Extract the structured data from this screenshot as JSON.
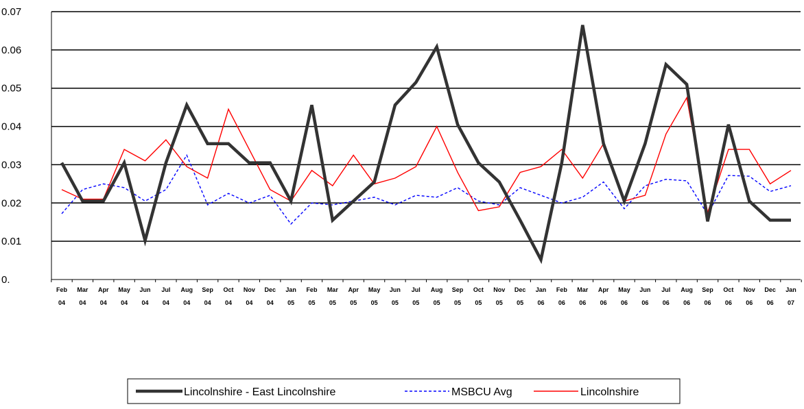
{
  "chart_data": {
    "type": "line",
    "ylim": [
      0,
      0.07
    ],
    "yticks": [
      "0.07",
      "0.06",
      "0.05",
      "0.04",
      "0.03",
      "0.02",
      "0.01",
      "0."
    ],
    "ytick_values": [
      0.07,
      0.06,
      0.05,
      0.04,
      0.03,
      0.02,
      0.01,
      0
    ],
    "grid": true,
    "legend_position": "bottom",
    "categories": [
      [
        "Feb",
        "04"
      ],
      [
        "Mar",
        "04"
      ],
      [
        "Apr",
        "04"
      ],
      [
        "May",
        "04"
      ],
      [
        "Jun",
        "04"
      ],
      [
        "Jul",
        "04"
      ],
      [
        "Aug",
        "04"
      ],
      [
        "Sep",
        "04"
      ],
      [
        "Oct",
        "04"
      ],
      [
        "Nov",
        "04"
      ],
      [
        "Dec",
        "04"
      ],
      [
        "Jan",
        "05"
      ],
      [
        "Feb",
        "05"
      ],
      [
        "Mar",
        "05"
      ],
      [
        "Apr",
        "05"
      ],
      [
        "May",
        "05"
      ],
      [
        "Jun",
        "05"
      ],
      [
        "Jul",
        "05"
      ],
      [
        "Aug",
        "05"
      ],
      [
        "Sep",
        "05"
      ],
      [
        "Oct",
        "05"
      ],
      [
        "Nov",
        "05"
      ],
      [
        "Dec",
        "05"
      ],
      [
        "Jan",
        "06"
      ],
      [
        "Feb",
        "06"
      ],
      [
        "Mar",
        "06"
      ],
      [
        "Apr",
        "06"
      ],
      [
        "May",
        "06"
      ],
      [
        "Jun",
        "06"
      ],
      [
        "Jul",
        "06"
      ],
      [
        "Aug",
        "06"
      ],
      [
        "Sep",
        "06"
      ],
      [
        "Oct",
        "06"
      ],
      [
        "Nov",
        "06"
      ],
      [
        "Dec",
        "06"
      ],
      [
        "Jan",
        "07"
      ]
    ],
    "series": [
      {
        "name": "Lincolnshire - East Lincolnshire",
        "color": "#333333",
        "style": "solid-thick",
        "values": [
          0.0305,
          0.0205,
          0.0205,
          0.0305,
          0.0102,
          0.0305,
          0.0456,
          0.0355,
          0.0355,
          0.0305,
          0.0305,
          0.0205,
          0.0456,
          0.0155,
          0.0205,
          0.0255,
          0.0456,
          0.0515,
          0.0608,
          0.0405,
          0.0305,
          0.0255,
          0.0155,
          0.0052,
          0.0305,
          0.0665,
          0.0355,
          0.0205,
          0.0355,
          0.0562,
          0.051,
          0.0152,
          0.0405,
          0.0205,
          0.0155,
          0.0155
        ]
      },
      {
        "name": "MSBCU Avg",
        "color": "#0000ff",
        "style": "dashed",
        "values": [
          0.0172,
          0.0235,
          0.025,
          0.024,
          0.0205,
          0.0235,
          0.0325,
          0.0195,
          0.0225,
          0.02,
          0.022,
          0.0145,
          0.02,
          0.0195,
          0.0205,
          0.0215,
          0.0195,
          0.022,
          0.0215,
          0.024,
          0.0205,
          0.0195,
          0.024,
          0.022,
          0.02,
          0.0215,
          0.0255,
          0.0185,
          0.0245,
          0.0262,
          0.0258,
          0.017,
          0.0272,
          0.027,
          0.023,
          0.0245
        ]
      },
      {
        "name": "Lincolnshire",
        "color": "#ff0000",
        "style": "solid-thin",
        "values": [
          0.0235,
          0.021,
          0.021,
          0.034,
          0.031,
          0.0365,
          0.0295,
          0.0265,
          0.0445,
          0.034,
          0.0235,
          0.0205,
          0.0285,
          0.0245,
          0.0325,
          0.025,
          0.0265,
          0.0295,
          0.04,
          0.028,
          0.018,
          0.019,
          0.028,
          0.0295,
          0.034,
          0.0265,
          0.0355,
          0.0205,
          0.022,
          0.038,
          0.0475,
          0.0175,
          0.034,
          0.034,
          0.025,
          0.0285
        ]
      }
    ]
  }
}
